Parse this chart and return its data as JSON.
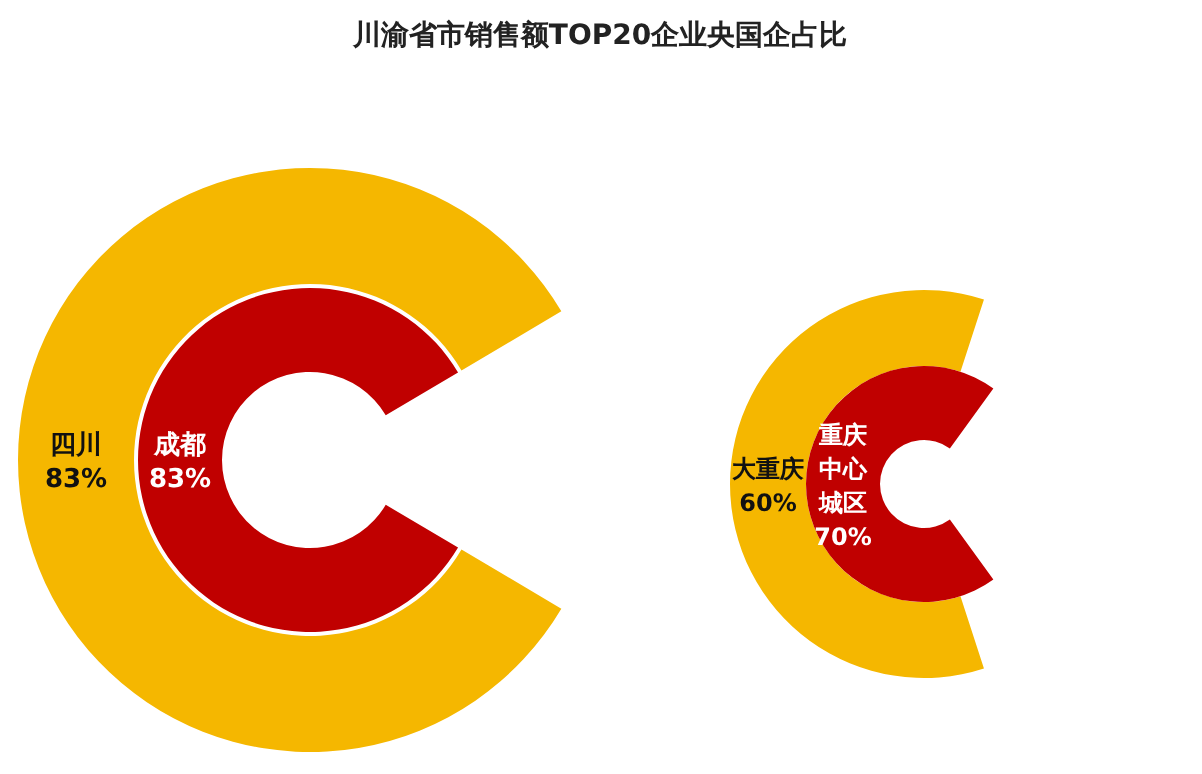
{
  "chart_data": [
    {
      "type": "other",
      "title": "川渝省市销售额TOP20企业央国企占比",
      "categories": [
        "四川",
        "成都"
      ],
      "values": [
        83,
        83
      ],
      "value_labels": [
        "83%",
        "83%"
      ],
      "colors": [
        "#f5b700",
        "#c00000"
      ]
    },
    {
      "type": "other",
      "categories": [
        "大重庆",
        "重庆中心城区"
      ],
      "values": [
        60,
        70
      ],
      "value_labels": [
        "60%",
        "70%"
      ],
      "colors": [
        "#f5b700",
        "#c00000"
      ]
    }
  ]
}
